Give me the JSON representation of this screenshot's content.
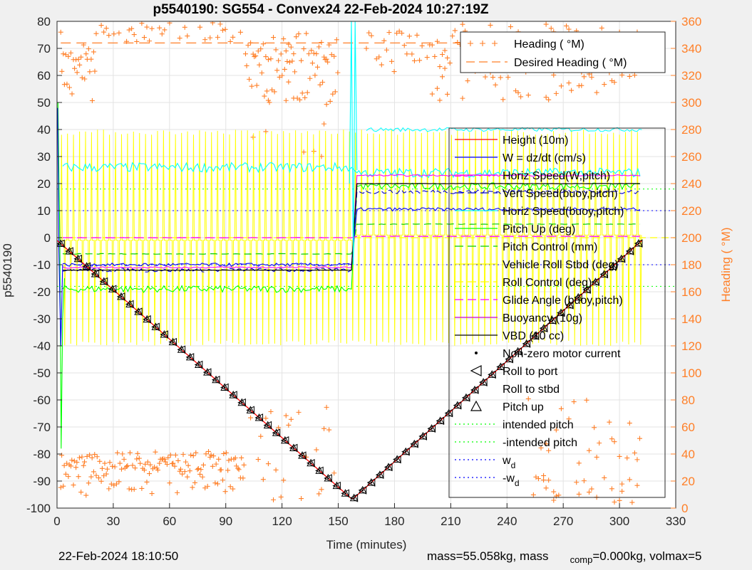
{
  "chart_data": {
    "type": "line",
    "title": "p5540190: SG554 - Convex24 22-Feb-2024 10:27:19Z",
    "xlabel": "Time (minutes)",
    "ylabel": "p5540190",
    "y2label": "Heading (  °M)",
    "xlim": [
      0,
      330
    ],
    "ylim": [
      -100,
      80
    ],
    "y2lim": [
      0,
      360
    ],
    "x_ticks": [
      0,
      30,
      60,
      90,
      120,
      150,
      180,
      210,
      240,
      270,
      300,
      330
    ],
    "y_ticks": [
      80,
      70,
      60,
      50,
      40,
      30,
      20,
      10,
      0,
      -10,
      -20,
      -30,
      -40,
      -50,
      -60,
      -70,
      -80,
      -90,
      -100
    ],
    "y2_ticks": [
      360,
      340,
      320,
      300,
      280,
      260,
      240,
      220,
      200,
      180,
      160,
      140,
      120,
      100,
      80,
      60,
      40,
      20,
      0
    ],
    "grid": true,
    "colors": {
      "height": "#ff0000",
      "w": "#0000ff",
      "horiz_w": "#ff00ff",
      "vert_buoy": "#0000cd",
      "horiz_buoy": "#00ffff",
      "pitch_up": "#00ff00",
      "pitch_control": "#00cc00",
      "roll": "#ffff00",
      "glide": "#ff00ff",
      "buoyancy": "#cc00cc",
      "vbd": "#000000",
      "heading": "#ff7f27",
      "intended": "#00ff00",
      "wd": "#0000ff"
    },
    "legend_main": [
      {
        "label": "Height (10m)",
        "color": "#ff0000",
        "style": "solid"
      },
      {
        "label": "W = dz/dt (cm/s)",
        "color": "#0000ff",
        "style": "solid"
      },
      {
        "label": "Horiz Speed(W,pitch)",
        "color": "#ff00ff",
        "style": "solid"
      },
      {
        "label": "Vert Speed(buoy,pitch)",
        "color": "#0000cd",
        "style": "dash"
      },
      {
        "label": "Horiz Speed(buoy,pitch)",
        "color": "#00ffff",
        "style": "solid"
      },
      {
        "label": "Pitch Up (deg)",
        "color": "#00ff00",
        "style": "solid"
      },
      {
        "label": "Pitch Control (mm)",
        "color": "#00cc00",
        "style": "dash"
      },
      {
        "label": "Vehicle Roll Stbd (deg)",
        "color": "#ffff00",
        "style": "solid"
      },
      {
        "label": "Roll Control (deg)",
        "color": "#ffff00",
        "style": "dash"
      },
      {
        "label": "Glide Angle (buoy,pitch)",
        "color": "#ff00ff",
        "style": "dash"
      },
      {
        "label": "Buoyancy (10g)",
        "color": "#cc00cc",
        "style": "solid"
      },
      {
        "label": "VBD (10 cc)",
        "color": "#000000",
        "style": "solid"
      },
      {
        "label": "Non-zero motor current",
        "color": "#000000",
        "style": "dot"
      },
      {
        "label": "Roll to port",
        "color": "#000000",
        "style": "tri-left"
      },
      {
        "label": "Roll to stbd",
        "color": "#000000",
        "style": "none"
      },
      {
        "label": "Pitch up",
        "color": "#000000",
        "style": "tri-up"
      },
      {
        "label": "intended pitch",
        "color": "#00ff00",
        "style": "dotted"
      },
      {
        "label": "-intended pitch",
        "color": "#00ff00",
        "style": "dotted"
      },
      {
        "label": "w",
        "sub": "d",
        "color": "#0000ff",
        "style": "dotted"
      },
      {
        "label": "-w",
        "sub": "d",
        "color": "#0000ff",
        "style": "dotted"
      }
    ],
    "legend_heading": [
      {
        "label": "Heading (  °M)",
        "color": "#ff7f27",
        "style": "plus"
      },
      {
        "label": "Desired Heading (  °M)",
        "color": "#ff7f27",
        "style": "dash"
      }
    ],
    "height_series": {
      "x": [
        0,
        157,
        158,
        312
      ],
      "y": [
        -1,
        -96.5,
        -96.5,
        -1
      ]
    },
    "levels": {
      "intended_pitch": 18,
      "neg_intended_pitch": -18,
      "wd": 10,
      "neg_wd": -10,
      "desired_heading_deg": 344,
      "dive": {
        "w": -10,
        "horiz_w": -11,
        "vbd": -12,
        "horiz_buoy": 26,
        "pitch_up": -19,
        "pitch_control": -6,
        "glide": 0,
        "vert_buoy": -12
      },
      "climb": {
        "w": 10.5,
        "horiz_w": 23,
        "vbd": 20,
        "horiz_buoy": 24,
        "pitch_up": 19,
        "pitch_control": 5,
        "glide": 0.5,
        "vert_buoy": 17,
        "horiz_buoy_upper": 40
      }
    }
  },
  "footer": {
    "timestamp": "22-Feb-2024 18:10:50",
    "mass_text": "mass=55.058kg, mass",
    "comp_sub": "comp",
    "mass_comp_text": "=0.000kg, volmax=5"
  }
}
